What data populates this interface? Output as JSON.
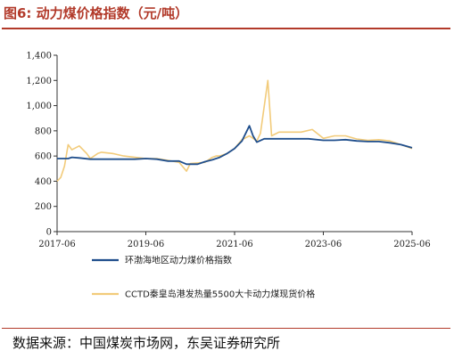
{
  "figure": {
    "number": "图6:",
    "title": "动力煤价格指数（元/吨）"
  },
  "source": "数据来源：中国煤炭市场网，东吴证券研究所",
  "chart_data": {
    "type": "line",
    "title": "",
    "xlabel": "",
    "ylabel": "",
    "x_range": [
      "2017-06",
      "2025-06"
    ],
    "x_ticks": [
      "2017-06",
      "2019-06",
      "2021-06",
      "2023-06",
      "2025-06"
    ],
    "ylim": [
      0,
      1400
    ],
    "y_ticks": [
      0,
      200,
      400,
      600,
      800,
      1000,
      1200,
      1400
    ],
    "y_tick_labels": [
      "0",
      "200",
      "400",
      "600",
      "800",
      "1,000",
      "1,200",
      "1,400"
    ],
    "grid": false,
    "legend_position": "bottom",
    "series": [
      {
        "name": "环渤海地区动力煤价格指数",
        "color": "#1f4e8c",
        "points": [
          [
            "2017-06",
            580
          ],
          [
            "2017-09",
            580
          ],
          [
            "2017-10",
            590
          ],
          [
            "2017-12",
            585
          ],
          [
            "2018-03",
            575
          ],
          [
            "2018-06",
            575
          ],
          [
            "2018-09",
            575
          ],
          [
            "2018-12",
            575
          ],
          [
            "2019-03",
            575
          ],
          [
            "2019-06",
            580
          ],
          [
            "2019-09",
            575
          ],
          [
            "2019-12",
            560
          ],
          [
            "2020-03",
            560
          ],
          [
            "2020-05",
            535
          ],
          [
            "2020-08",
            535
          ],
          [
            "2020-10",
            555
          ],
          [
            "2020-12",
            570
          ],
          [
            "2021-02",
            590
          ],
          [
            "2021-04",
            620
          ],
          [
            "2021-06",
            660
          ],
          [
            "2021-08",
            720
          ],
          [
            "2021-10",
            840
          ],
          [
            "2021-11",
            760
          ],
          [
            "2021-12",
            710
          ],
          [
            "2022-02",
            737
          ],
          [
            "2022-06",
            737
          ],
          [
            "2022-10",
            737
          ],
          [
            "2023-02",
            737
          ],
          [
            "2023-06",
            725
          ],
          [
            "2023-09",
            725
          ],
          [
            "2023-12",
            730
          ],
          [
            "2024-03",
            720
          ],
          [
            "2024-06",
            715
          ],
          [
            "2024-09",
            715
          ],
          [
            "2024-12",
            705
          ],
          [
            "2025-03",
            690
          ],
          [
            "2025-06",
            665
          ]
        ]
      },
      {
        "name": "CCTD秦皇岛港发热量5500大卡动力煤现货价格",
        "color": "#f2cb7a",
        "points": [
          [
            "2017-06",
            400
          ],
          [
            "2017-07",
            430
          ],
          [
            "2017-08",
            520
          ],
          [
            "2017-09",
            690
          ],
          [
            "2017-10",
            650
          ],
          [
            "2017-12",
            680
          ],
          [
            "2018-02",
            620
          ],
          [
            "2018-03",
            580
          ],
          [
            "2018-05",
            620
          ],
          [
            "2018-06",
            630
          ],
          [
            "2018-09",
            620
          ],
          [
            "2018-12",
            600
          ],
          [
            "2019-03",
            590
          ],
          [
            "2019-06",
            580
          ],
          [
            "2019-09",
            580
          ],
          [
            "2019-12",
            565
          ],
          [
            "2020-03",
            550
          ],
          [
            "2020-05",
            480
          ],
          [
            "2020-06",
            540
          ],
          [
            "2020-08",
            545
          ],
          [
            "2020-10",
            550
          ],
          [
            "2020-12",
            590
          ],
          [
            "2021-01",
            600
          ],
          [
            "2021-02",
            600
          ],
          [
            "2021-04",
            620
          ],
          [
            "2021-06",
            660
          ],
          [
            "2021-08",
            730
          ],
          [
            "2021-10",
            760
          ],
          [
            "2021-11",
            740
          ],
          [
            "2021-12",
            720
          ],
          [
            "2022-01",
            780
          ],
          [
            "2022-03",
            1200
          ],
          [
            "2022-04",
            760
          ],
          [
            "2022-06",
            790
          ],
          [
            "2022-09",
            790
          ],
          [
            "2022-12",
            790
          ],
          [
            "2023-03",
            810
          ],
          [
            "2023-06",
            740
          ],
          [
            "2023-09",
            760
          ],
          [
            "2023-12",
            760
          ],
          [
            "2024-03",
            735
          ],
          [
            "2024-06",
            725
          ],
          [
            "2024-09",
            730
          ],
          [
            "2024-12",
            720
          ],
          [
            "2025-03",
            690
          ],
          [
            "2025-06",
            660
          ]
        ]
      }
    ]
  }
}
